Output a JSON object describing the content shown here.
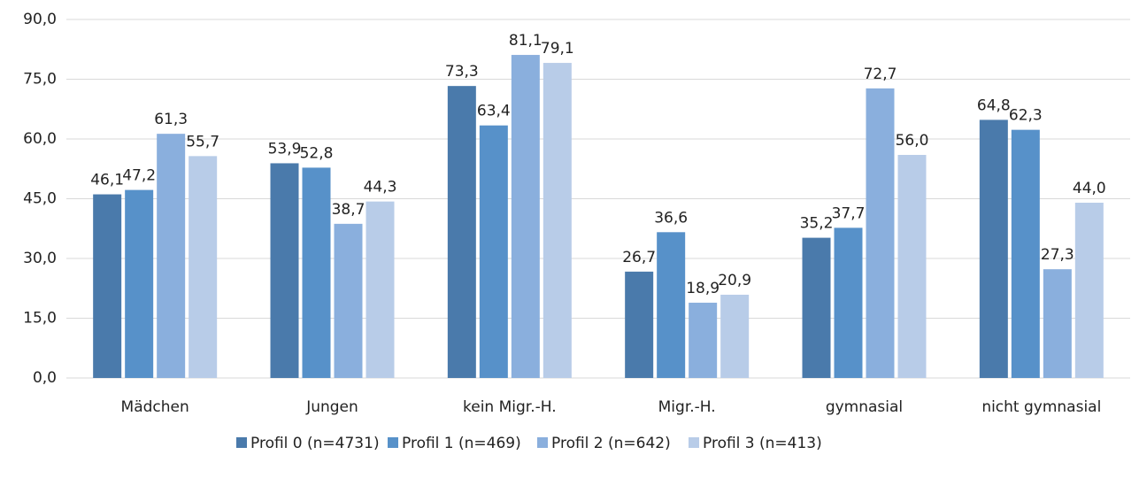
{
  "chart_data": {
    "type": "bar",
    "categories": [
      "Mädchen",
      "Jungen",
      "kein Migr.-H.",
      "Migr.-H.",
      "gymnasial",
      "nicht gymnasial"
    ],
    "series": [
      {
        "name": "Profil 0 (n=4731)",
        "color": "#4a7aab",
        "values": [
          46.1,
          53.9,
          73.3,
          26.7,
          35.2,
          64.8
        ],
        "value_labels": [
          "46,1",
          "53,9",
          "73,3",
          "26,7",
          "35,2",
          "64,8"
        ]
      },
      {
        "name": "Profil 1 (n=469)",
        "color": "#5791c9",
        "values": [
          47.2,
          52.8,
          63.4,
          36.6,
          37.7,
          62.3
        ],
        "value_labels": [
          "47,2",
          "52,8",
          "63,4",
          "36,6",
          "37,7",
          "62,3"
        ]
      },
      {
        "name": "Profil 2 (n=642)",
        "color": "#8aafdd",
        "values": [
          61.3,
          38.7,
          81.1,
          18.9,
          72.7,
          27.3
        ],
        "value_labels": [
          "61,3",
          "38,7",
          "81,1",
          "18,9",
          "72,7",
          "27,3"
        ]
      },
      {
        "name": "Profil 3 (n=413)",
        "color": "#b8cce8",
        "values": [
          55.7,
          44.3,
          79.1,
          20.9,
          56.0,
          44.0
        ],
        "value_labels": [
          "55,7",
          "44,3",
          "79,1",
          "20,9",
          "56,0",
          "44,0"
        ]
      }
    ],
    "ylim": [
      0,
      90
    ],
    "yticks": [
      {
        "value": 0,
        "label": "0,0"
      },
      {
        "value": 15,
        "label": "15,0"
      },
      {
        "value": 30,
        "label": "30,0"
      },
      {
        "value": 45,
        "label": "45,0"
      },
      {
        "value": 60,
        "label": "60,0"
      },
      {
        "value": 75,
        "label": "75,0"
      },
      {
        "value": 90,
        "label": "90,0"
      }
    ],
    "grid": true,
    "legend": "bottom"
  }
}
